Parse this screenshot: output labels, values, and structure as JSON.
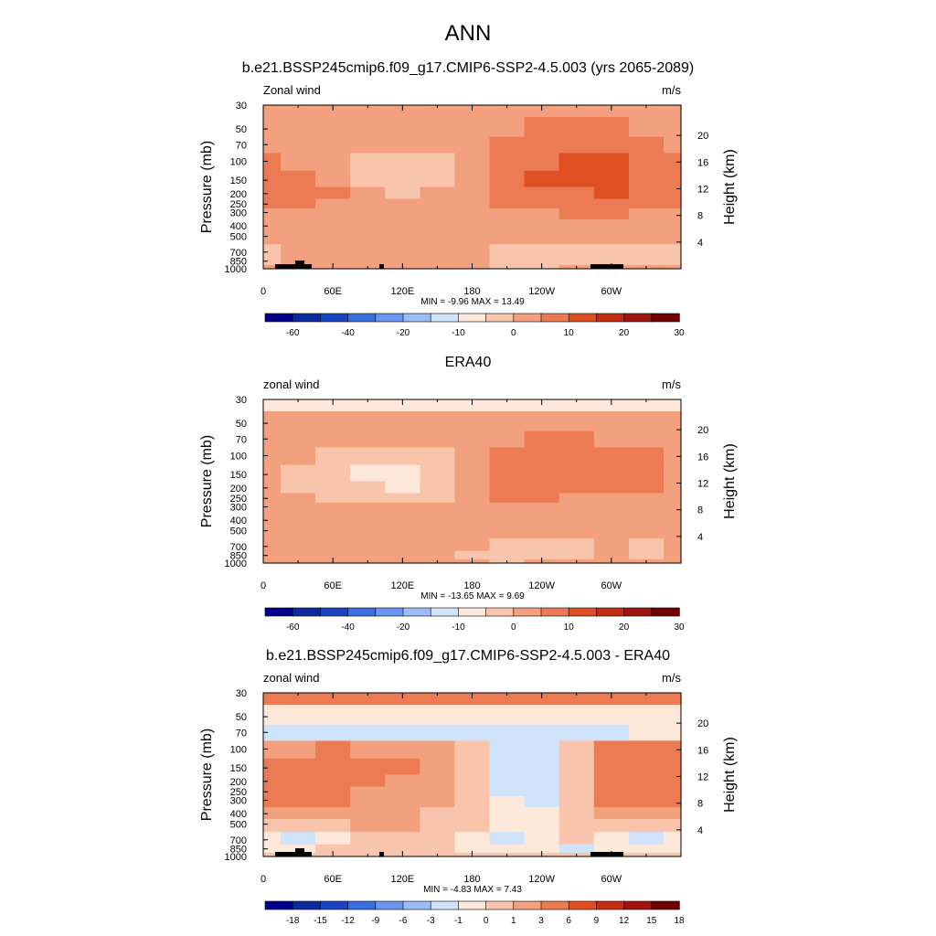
{
  "figure_title": "ANN",
  "colors": {
    "palette": [
      "#00008b",
      "#0a2a9e",
      "#1a45c2",
      "#3a6fe0",
      "#6b96f0",
      "#9cbcf5",
      "#cfe3fb",
      "#fde8da",
      "#f8c5ac",
      "#f2a07e",
      "#ec7a52",
      "#de5022",
      "#c52d10",
      "#a01510",
      "#700000"
    ]
  },
  "chart_data": [
    {
      "type": "heatmap",
      "title": "b.e21.BSSP245cmip6.f09_g17.CMIP6-SSP2-4.5.003 (yrs 2065-2089)",
      "left_label": "Zonal wind",
      "right_label": "m/s",
      "ylabel": "Pressure (mb)",
      "y2label": "Height (km)",
      "xticks": [
        "0",
        "60E",
        "120E",
        "180",
        "120W",
        "60W"
      ],
      "yticks": [
        "30",
        "50",
        "70",
        "100",
        "150",
        "200",
        "250",
        "300",
        "400",
        "500",
        "700",
        "850",
        "1000"
      ],
      "y2ticks": [
        "20",
        "16",
        "12",
        "8",
        "4"
      ],
      "stats": "MIN =  -9.96  MAX =  13.49",
      "levels": [
        "-60",
        "-40",
        "-20",
        "-10",
        "0",
        "10",
        "20",
        "30"
      ],
      "x": [
        0,
        30,
        60,
        90,
        120,
        150,
        180,
        210,
        240,
        270,
        300,
        330,
        360
      ],
      "y": [
        30,
        50,
        70,
        100,
        150,
        200,
        250,
        300,
        400,
        500,
        700,
        850,
        1000
      ],
      "z": [
        [
          2,
          2,
          2,
          2,
          2,
          2,
          2,
          2,
          2,
          2,
          2,
          2,
          2
        ],
        [
          3,
          3,
          3,
          3,
          3,
          3,
          3,
          4,
          5,
          5,
          5,
          4,
          3
        ],
        [
          4,
          3,
          2,
          1,
          0,
          1,
          2,
          5,
          7,
          8,
          9,
          7,
          4
        ],
        [
          5,
          4,
          3,
          -1,
          -2,
          -1,
          3,
          7,
          9,
          10,
          12,
          9,
          5
        ],
        [
          6,
          5,
          4,
          -1,
          -3,
          -1,
          3,
          7,
          10,
          10,
          13,
          9,
          6
        ],
        [
          7,
          6,
          5,
          0,
          -2,
          0,
          3,
          6,
          8,
          9,
          10,
          8,
          6
        ],
        [
          5,
          6,
          4,
          1,
          0,
          1,
          2,
          5,
          6,
          7,
          7,
          6,
          5
        ],
        [
          3,
          4,
          3,
          2,
          1,
          1,
          1,
          3,
          4,
          5,
          5,
          4,
          3
        ],
        [
          1,
          2,
          2,
          2,
          2,
          1,
          1,
          1,
          2,
          2,
          2,
          2,
          1
        ],
        [
          0,
          1,
          2,
          3,
          3,
          2,
          1,
          0,
          0,
          0,
          0,
          0,
          0
        ],
        [
          -1,
          1,
          3,
          4,
          4,
          3,
          1,
          -1,
          -2,
          -2,
          -1,
          -1,
          -1
        ],
        [
          -1,
          0,
          3,
          4,
          3,
          2,
          0,
          -2,
          -2,
          -2,
          -2,
          -1,
          -1
        ],
        [
          0,
          1,
          1,
          1,
          1,
          1,
          0,
          -1,
          -1,
          0,
          1,
          1,
          0
        ]
      ]
    },
    {
      "type": "heatmap",
      "title": "ERA40",
      "left_label": "zonal wind",
      "right_label": "m/s",
      "ylabel": "Pressure (mb)",
      "y2label": "Height (km)",
      "xticks": [
        "0",
        "60E",
        "120E",
        "180",
        "120W",
        "60W"
      ],
      "yticks": [
        "30",
        "50",
        "70",
        "100",
        "150",
        "200",
        "250",
        "300",
        "400",
        "500",
        "700",
        "850",
        "1000"
      ],
      "y2ticks": [
        "20",
        "16",
        "12",
        "8",
        "4"
      ],
      "stats": "MIN = -13.65  MAX =   9.69",
      "levels": [
        "-60",
        "-40",
        "-20",
        "-10",
        "0",
        "10",
        "20",
        "30"
      ],
      "x": [
        0,
        30,
        60,
        90,
        120,
        150,
        180,
        210,
        240,
        270,
        300,
        330,
        360
      ],
      "y": [
        30,
        50,
        70,
        100,
        150,
        200,
        250,
        300,
        400,
        500,
        700,
        850,
        1000
      ],
      "z": [
        [
          -6,
          -6,
          -6,
          -6,
          -6,
          -6,
          -6,
          -6,
          -6,
          -6,
          -6,
          -6,
          -6
        ],
        [
          1,
          1,
          1,
          1,
          1,
          1,
          1,
          1,
          1,
          1,
          1,
          1,
          1
        ],
        [
          2,
          1,
          1,
          0,
          0,
          1,
          2,
          4,
          5,
          5,
          4,
          3,
          2
        ],
        [
          2,
          0,
          -2,
          -3,
          -4,
          -2,
          2,
          7,
          8,
          8,
          6,
          5,
          3
        ],
        [
          1,
          -2,
          -4,
          -8,
          -8,
          -4,
          2,
          8,
          9,
          9,
          6,
          7,
          3
        ],
        [
          1,
          -1,
          -3,
          -5,
          -6,
          -3,
          2,
          7,
          8,
          7,
          5,
          5,
          2
        ],
        [
          1,
          0,
          -1,
          -2,
          -2,
          -1,
          2,
          5,
          5,
          4,
          3,
          3,
          2
        ],
        [
          2,
          1,
          0,
          0,
          0,
          0,
          2,
          3,
          3,
          3,
          2,
          2,
          2
        ],
        [
          1,
          2,
          2,
          3,
          2,
          1,
          1,
          1,
          1,
          1,
          1,
          1,
          1
        ],
        [
          1,
          2,
          3,
          4,
          3,
          2,
          1,
          1,
          1,
          1,
          1,
          1,
          1
        ],
        [
          0,
          1,
          3,
          4,
          3,
          2,
          0,
          -2,
          -2,
          -1,
          0,
          -1,
          0
        ],
        [
          1,
          1,
          2,
          3,
          2,
          1,
          -1,
          -3,
          -2,
          -1,
          0,
          -1,
          0
        ],
        [
          2,
          1,
          1,
          1,
          1,
          0,
          0,
          -1,
          0,
          0,
          1,
          0,
          1
        ]
      ]
    },
    {
      "type": "heatmap",
      "title": "b.e21.BSSP245cmip6.f09_g17.CMIP6-SSP2-4.5.003 - ERA40",
      "left_label": "zonal wind",
      "right_label": "m/s",
      "ylabel": "Pressure (mb)",
      "y2label": "Height (km)",
      "xticks": [
        "0",
        "60E",
        "120E",
        "180",
        "120W",
        "60W"
      ],
      "yticks": [
        "30",
        "50",
        "70",
        "100",
        "150",
        "200",
        "250",
        "300",
        "400",
        "500",
        "700",
        "850",
        "1000"
      ],
      "y2ticks": [
        "20",
        "16",
        "12",
        "8",
        "4"
      ],
      "stats": "MIN =  -4.83  MAX =   7.43",
      "levels": [
        "-18",
        "-15",
        "-12",
        "-9",
        "-6",
        "-3",
        "-1",
        "0",
        "1",
        "3",
        "6",
        "9",
        "12",
        "15",
        "18"
      ],
      "x": [
        0,
        30,
        60,
        90,
        120,
        150,
        180,
        210,
        240,
        270,
        300,
        330,
        360
      ],
      "y": [
        30,
        50,
        70,
        100,
        150,
        200,
        250,
        300,
        400,
        500,
        700,
        850,
        1000
      ],
      "z": [
        [
          3,
          3,
          3,
          3,
          3,
          3,
          3,
          3,
          3,
          3,
          3,
          3,
          3
        ],
        [
          -1,
          -1,
          -1,
          -1,
          -1,
          -1,
          -1,
          -1,
          -1,
          -1,
          -1,
          -1,
          -1
        ],
        [
          -1.5,
          -2,
          -1.5,
          -1.5,
          -1.5,
          -1.5,
          -1.5,
          -1.5,
          -1.5,
          -1.5,
          -1.5,
          -1,
          -1
        ],
        [
          2,
          2,
          3,
          2,
          2,
          1,
          0,
          -1.5,
          -2,
          0,
          3,
          4,
          4
        ],
        [
          3.5,
          3,
          4,
          4,
          3,
          2,
          0,
          -2,
          -3,
          0,
          3.5,
          4,
          5
        ],
        [
          3.5,
          3,
          4,
          3,
          2,
          2,
          0,
          -2,
          -3,
          0,
          3,
          4,
          4
        ],
        [
          3,
          3,
          3,
          2,
          2,
          1,
          0,
          -1.5,
          -2,
          0,
          3,
          3.5,
          3
        ],
        [
          3,
          3,
          3,
          2,
          2,
          1,
          0,
          -1,
          -1.5,
          0,
          3,
          3,
          3
        ],
        [
          2,
          2,
          2,
          2,
          1,
          0.5,
          0,
          -0.5,
          -1,
          0,
          2,
          2,
          2
        ],
        [
          0.5,
          0.5,
          0.5,
          1,
          1,
          0.5,
          0,
          -0.5,
          -1,
          0,
          0.5,
          0.5,
          0.5
        ],
        [
          -1,
          -2,
          -1,
          0,
          0.5,
          0,
          -1,
          -1.5,
          -1,
          0,
          -1,
          -2,
          -1
        ],
        [
          -1,
          -1,
          0,
          0,
          0.5,
          0,
          -0.5,
          -1,
          -1,
          -2,
          -1,
          -0.5,
          -1
        ],
        [
          0.5,
          0.5,
          0.5,
          0.5,
          0.5,
          0.5,
          0,
          0,
          0,
          0,
          0,
          0.5,
          0.5
        ]
      ]
    }
  ]
}
